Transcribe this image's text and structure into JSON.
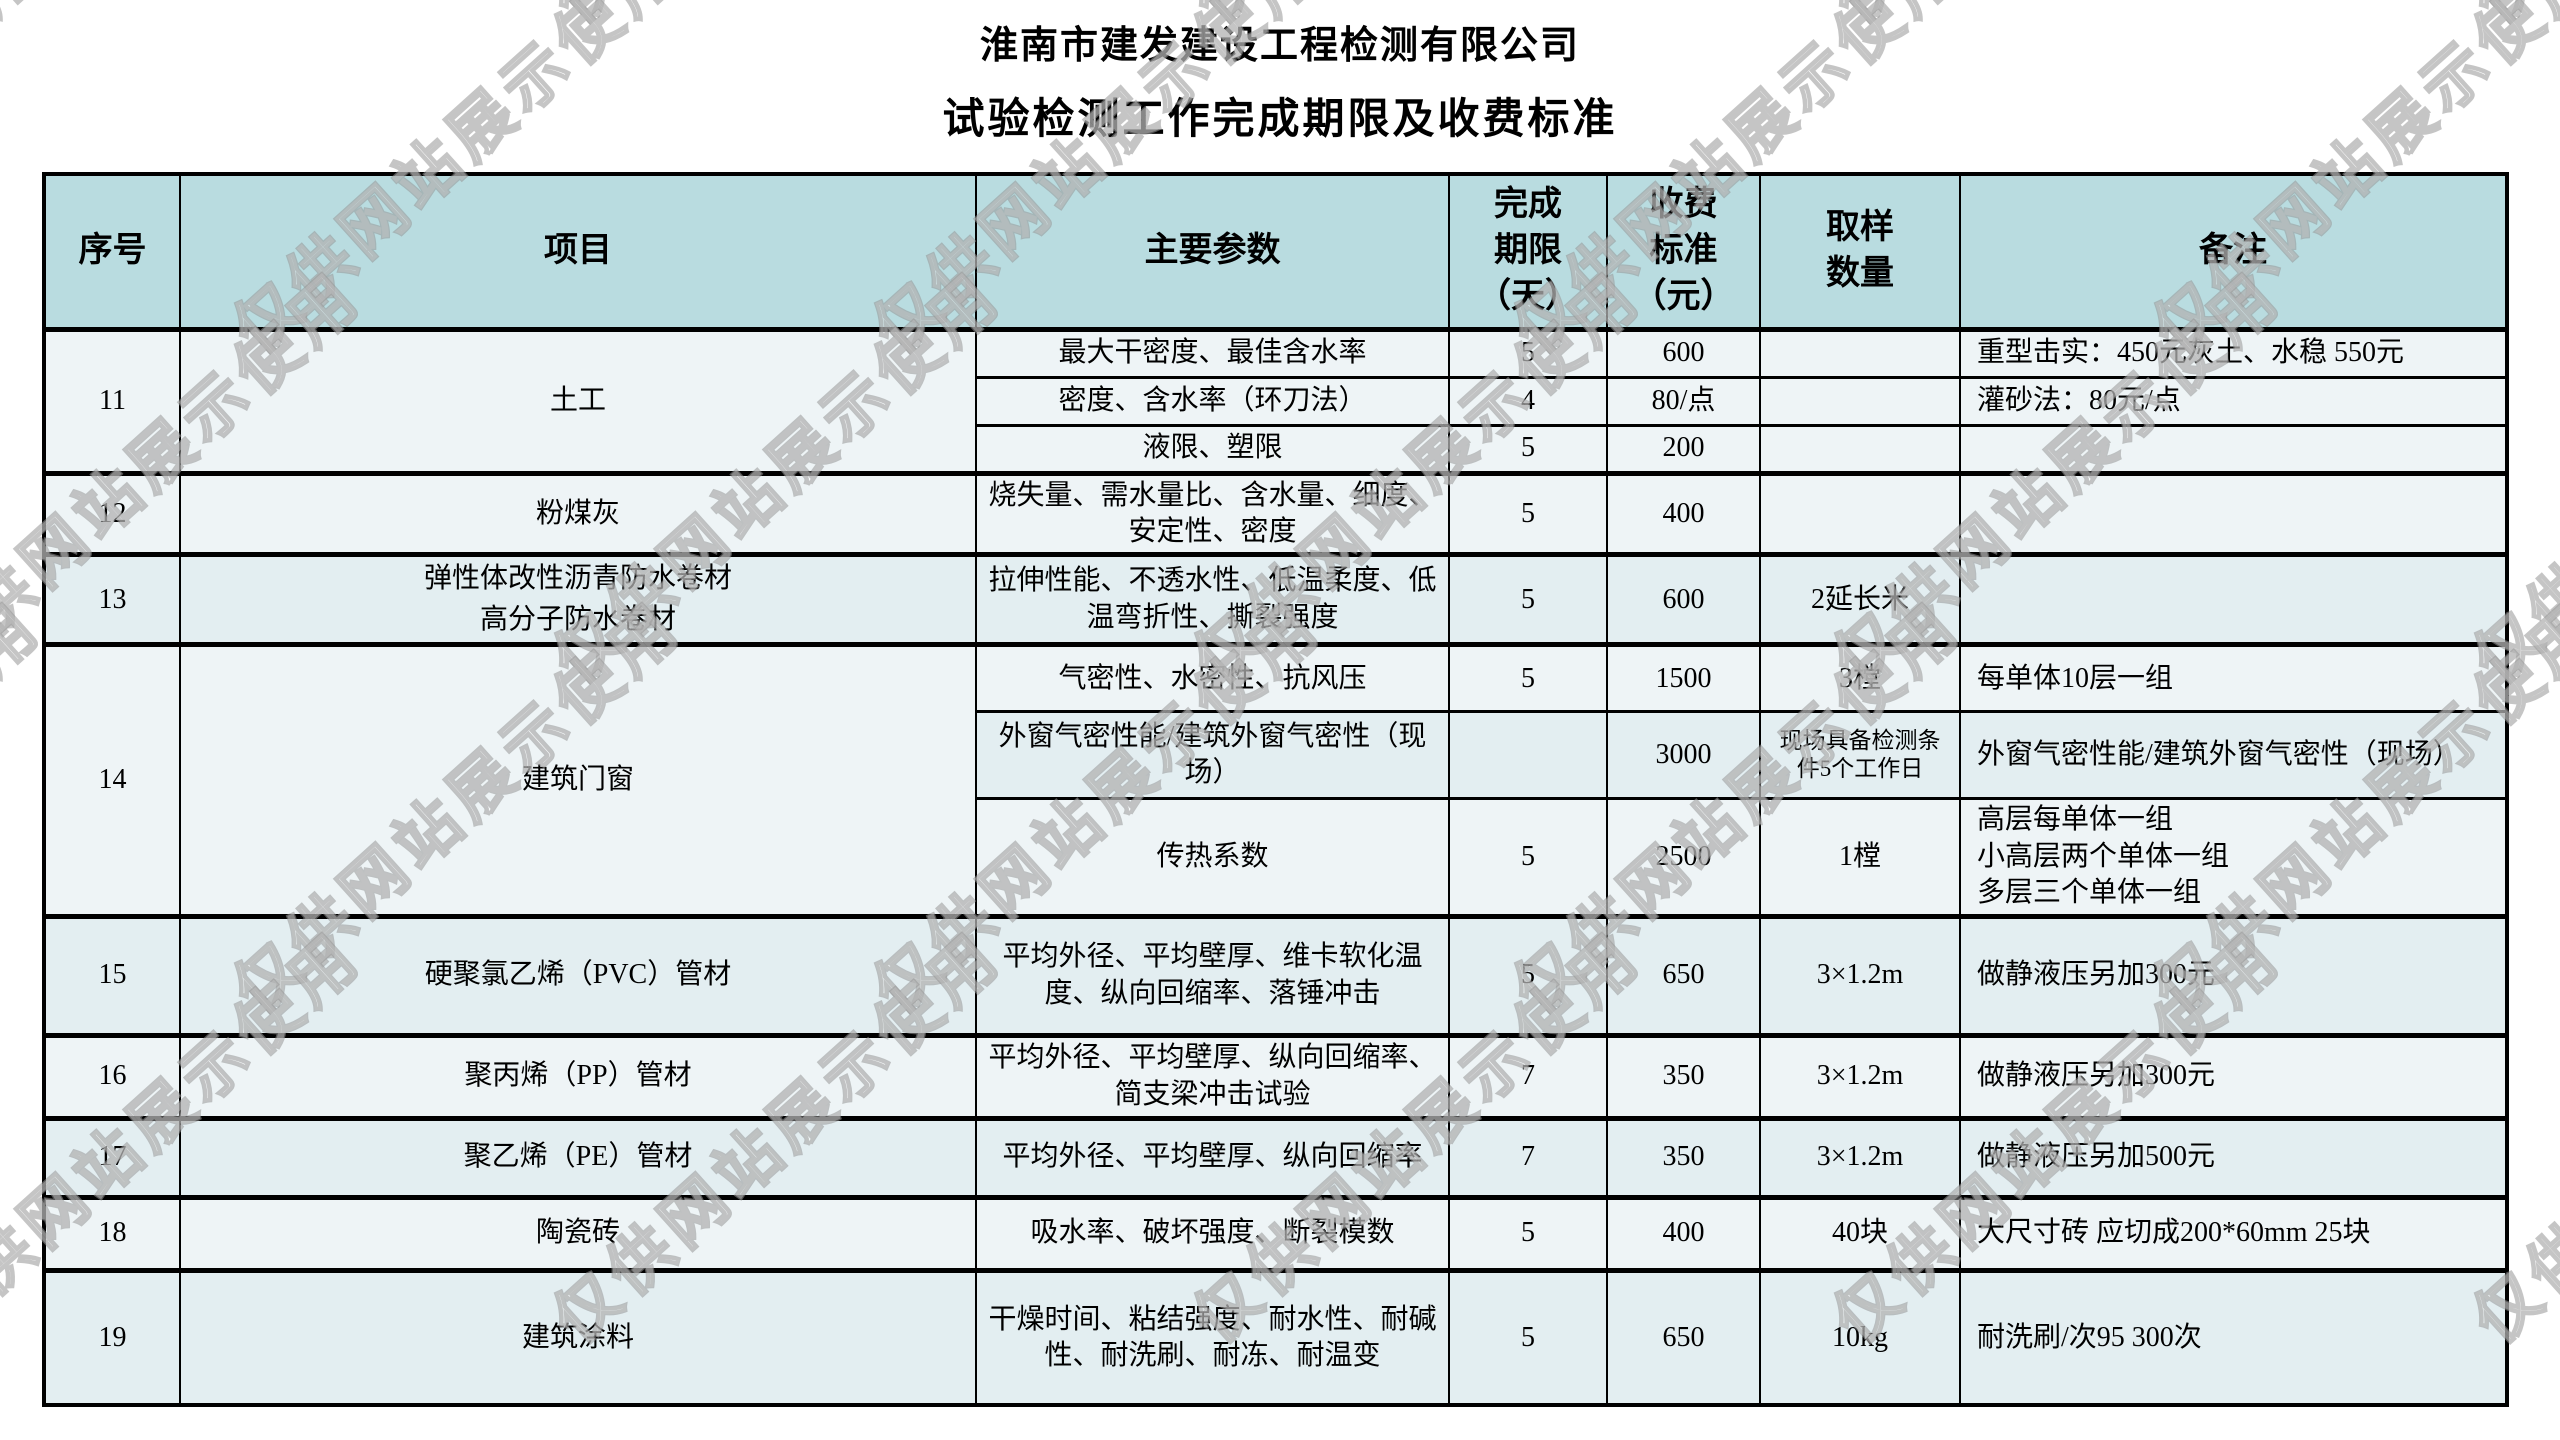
{
  "watermark": "仅供网站展示使用",
  "title": "淮南市建发建设工程检测有限公司",
  "subtitle": "试验检测工作完成期限及收费标准",
  "colors": {
    "header_bg": "#b9dce0",
    "row_tint_light": "#eef4f6",
    "row_tint_dark": "#e3eef1",
    "border": "#000000"
  },
  "table": {
    "headers": [
      "序号",
      "项目",
      "主要参数",
      "完成\n期限\n（天）",
      "收费\n标准\n（元）",
      "取样\n数量",
      "备注"
    ],
    "rows": [
      {
        "no": "11",
        "item": "土工",
        "rowspan": 3,
        "params": "最大干密度、最佳含水率",
        "days": "5",
        "fee": "600",
        "sample": "",
        "remark": "重型击实：450元灰土、水稳 550元"
      },
      {
        "params": "密度、含水率（环刀法）",
        "days": "4",
        "fee": "80/点",
        "sample": "",
        "remark": "灌砂法：80元/点"
      },
      {
        "params": "液限、塑限",
        "days": "5",
        "fee": "200",
        "sample": "",
        "remark": ""
      },
      {
        "no": "12",
        "item": "粉煤灰",
        "params": "烧失量、需水量比、含水量、细度、安定性、密度",
        "days": "5",
        "fee": "400",
        "sample": "",
        "remark": ""
      },
      {
        "no": "13",
        "item": "弹性体改性沥青防水卷材\n高分子防水卷材",
        "params": "拉伸性能、不透水性、低温柔度、低温弯折性、撕裂强度",
        "days": "5",
        "fee": "600",
        "sample": "2延长米",
        "remark": ""
      },
      {
        "no": "14",
        "item": "建筑门窗",
        "rowspan": 3,
        "params": "气密性、水密性、抗风压",
        "days": "5",
        "fee": "1500",
        "sample": "3樘",
        "remark": "每单体10层一组"
      },
      {
        "params": "外窗气密性能/建筑外窗气密性（现场）",
        "days": "",
        "fee": "3000",
        "sample": "现场具备检测条件5个工作日",
        "remark": "外窗气密性能/建筑外窗气密性（现场）"
      },
      {
        "params": "传热系数",
        "days": "5",
        "fee": "2500",
        "sample": "1樘",
        "remark": "高层每单体一组\n小高层两个单体一组\n多层三个单体一组"
      },
      {
        "no": "15",
        "item": "硬聚氯乙烯（PVC）管材",
        "params": "平均外径、平均壁厚、维卡软化温度、纵向回缩率、落锤冲击",
        "days": "5",
        "fee": "650",
        "sample": "3×1.2m",
        "remark": "做静液压另加300元"
      },
      {
        "no": "16",
        "item": "聚丙烯（PP）管材",
        "params": "平均外径、平均壁厚、纵向回缩率、简支梁冲击试验",
        "days": "7",
        "fee": "350",
        "sample": "3×1.2m",
        "remark": "做静液压另加300元"
      },
      {
        "no": "17",
        "item": "聚乙烯（PE）管材",
        "params": "平均外径、平均壁厚、纵向回缩率",
        "days": "7",
        "fee": "350",
        "sample": "3×1.2m",
        "remark": "做静液压另加500元"
      },
      {
        "no": "18",
        "item": "陶瓷砖",
        "params": "吸水率、破坏强度、断裂模数",
        "days": "5",
        "fee": "400",
        "sample": "40块",
        "remark": "大尺寸砖 应切成200*60mm 25块"
      },
      {
        "no": "19",
        "item": "建筑涂料",
        "params": "干燥时间、粘结强度、耐水性、耐碱性、耐洗刷、耐冻、耐温变",
        "days": "5",
        "fee": "650",
        "sample": "10kg",
        "remark": "耐洗刷/次95 300次"
      }
    ]
  }
}
